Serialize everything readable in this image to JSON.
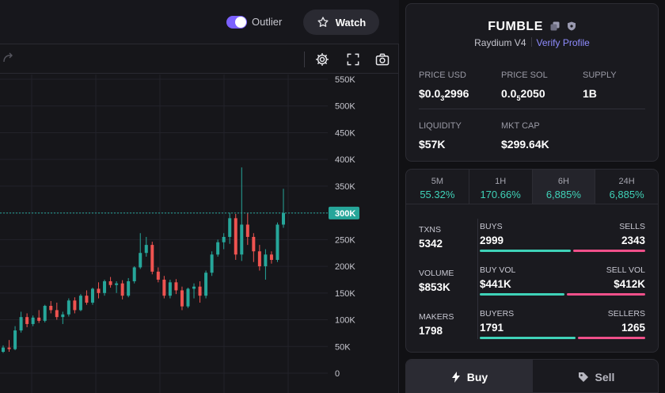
{
  "header": {
    "outlier_label": "Outlier",
    "outlier_enabled": true,
    "watch_label": "Watch"
  },
  "toolbar": {
    "icons": [
      "redo-icon",
      "settings-icon",
      "fullscreen-icon",
      "camera-icon"
    ]
  },
  "chart_data": {
    "type": "candlestick",
    "y_tick_labels": [
      "550K",
      "500K",
      "450K",
      "400K",
      "350K",
      "300K",
      "250K",
      "200K",
      "150K",
      "100K",
      "50K",
      "0"
    ],
    "y_ticks": [
      550000,
      500000,
      450000,
      400000,
      350000,
      300000,
      250000,
      200000,
      150000,
      100000,
      50000,
      0
    ],
    "ylim": [
      0,
      550000
    ],
    "current_price_label": "300K",
    "current_price": 299640,
    "grid": true,
    "colors": {
      "up": "#26a69a",
      "down": "#ef5350",
      "price_line": "#26a69a"
    },
    "candles": [
      {
        "o": 40000,
        "h": 52000,
        "l": 38000,
        "c": 48000
      },
      {
        "o": 48000,
        "h": 62000,
        "l": 40000,
        "c": 45000
      },
      {
        "o": 45000,
        "h": 88000,
        "l": 43000,
        "c": 80000
      },
      {
        "o": 80000,
        "h": 115000,
        "l": 76000,
        "c": 105000
      },
      {
        "o": 105000,
        "h": 112000,
        "l": 86000,
        "c": 92000
      },
      {
        "o": 92000,
        "h": 108000,
        "l": 88000,
        "c": 104000
      },
      {
        "o": 104000,
        "h": 118000,
        "l": 94000,
        "c": 98000
      },
      {
        "o": 98000,
        "h": 128000,
        "l": 95000,
        "c": 126000
      },
      {
        "o": 126000,
        "h": 135000,
        "l": 112000,
        "c": 118000
      },
      {
        "o": 118000,
        "h": 132000,
        "l": 100000,
        "c": 105000
      },
      {
        "o": 105000,
        "h": 115000,
        "l": 92000,
        "c": 110000
      },
      {
        "o": 110000,
        "h": 140000,
        "l": 106000,
        "c": 136000
      },
      {
        "o": 136000,
        "h": 142000,
        "l": 112000,
        "c": 118000
      },
      {
        "o": 118000,
        "h": 148000,
        "l": 116000,
        "c": 145000
      },
      {
        "o": 145000,
        "h": 155000,
        "l": 128000,
        "c": 132000
      },
      {
        "o": 132000,
        "h": 160000,
        "l": 128000,
        "c": 158000
      },
      {
        "o": 158000,
        "h": 170000,
        "l": 140000,
        "c": 150000
      },
      {
        "o": 150000,
        "h": 175000,
        "l": 145000,
        "c": 172000
      },
      {
        "o": 172000,
        "h": 180000,
        "l": 160000,
        "c": 165000
      },
      {
        "o": 165000,
        "h": 172000,
        "l": 150000,
        "c": 168000
      },
      {
        "o": 168000,
        "h": 174000,
        "l": 138000,
        "c": 145000
      },
      {
        "o": 145000,
        "h": 178000,
        "l": 142000,
        "c": 172000
      },
      {
        "o": 172000,
        "h": 200000,
        "l": 168000,
        "c": 198000
      },
      {
        "o": 198000,
        "h": 262000,
        "l": 195000,
        "c": 225000
      },
      {
        "o": 225000,
        "h": 255000,
        "l": 218000,
        "c": 240000
      },
      {
        "o": 240000,
        "h": 246000,
        "l": 185000,
        "c": 190000
      },
      {
        "o": 190000,
        "h": 198000,
        "l": 170000,
        "c": 175000
      },
      {
        "o": 175000,
        "h": 182000,
        "l": 140000,
        "c": 145000
      },
      {
        "o": 145000,
        "h": 175000,
        "l": 140000,
        "c": 170000
      },
      {
        "o": 170000,
        "h": 176000,
        "l": 148000,
        "c": 155000
      },
      {
        "o": 155000,
        "h": 162000,
        "l": 118000,
        "c": 125000
      },
      {
        "o": 125000,
        "h": 160000,
        "l": 122000,
        "c": 158000
      },
      {
        "o": 158000,
        "h": 168000,
        "l": 140000,
        "c": 162000
      },
      {
        "o": 162000,
        "h": 172000,
        "l": 132000,
        "c": 145000
      },
      {
        "o": 145000,
        "h": 192000,
        "l": 140000,
        "c": 188000
      },
      {
        "o": 188000,
        "h": 228000,
        "l": 182000,
        "c": 222000
      },
      {
        "o": 222000,
        "h": 250000,
        "l": 218000,
        "c": 245000
      },
      {
        "o": 245000,
        "h": 262000,
        "l": 232000,
        "c": 255000
      },
      {
        "o": 255000,
        "h": 300000,
        "l": 242000,
        "c": 290000
      },
      {
        "o": 290000,
        "h": 298000,
        "l": 212000,
        "c": 222000
      },
      {
        "o": 222000,
        "h": 385000,
        "l": 210000,
        "c": 278000
      },
      {
        "o": 278000,
        "h": 300000,
        "l": 240000,
        "c": 255000
      },
      {
        "o": 255000,
        "h": 262000,
        "l": 208000,
        "c": 228000
      },
      {
        "o": 228000,
        "h": 240000,
        "l": 192000,
        "c": 200000
      },
      {
        "o": 200000,
        "h": 232000,
        "l": 175000,
        "c": 222000
      },
      {
        "o": 222000,
        "h": 228000,
        "l": 205000,
        "c": 212000
      },
      {
        "o": 212000,
        "h": 282000,
        "l": 208000,
        "c": 278000
      },
      {
        "o": 278000,
        "h": 345000,
        "l": 272000,
        "c": 299640
      }
    ]
  },
  "token": {
    "name": "FUMBLE",
    "dex": "Raydium V4",
    "verify_label": "Verify Profile",
    "stats": [
      {
        "label": "PRICE USD",
        "value_main": "$0.0",
        "value_sub": "3",
        "value_rest": "2996"
      },
      {
        "label": "PRICE SOL",
        "value_main": "0.0",
        "value_sub": "5",
        "value_rest": "2050"
      },
      {
        "label": "SUPPLY",
        "value_main": "1B",
        "value_sub": "",
        "value_rest": ""
      },
      {
        "label": "LIQUIDITY",
        "value_main": "$57K",
        "value_sub": "",
        "value_rest": ""
      },
      {
        "label": "MKT CAP",
        "value_main": "$299.64K",
        "value_sub": "",
        "value_rest": ""
      }
    ]
  },
  "timeframes": [
    {
      "label": "5M",
      "change": "55.32%",
      "active": false
    },
    {
      "label": "1H",
      "change": "170.66%",
      "active": false
    },
    {
      "label": "6H",
      "change": "6,885%",
      "active": true
    },
    {
      "label": "24H",
      "change": "6,885%",
      "active": false
    }
  ],
  "txns": {
    "txns_label": "TXNS",
    "txns_value": "5342",
    "volume_label": "VOLUME",
    "volume_value": "$853K",
    "makers_label": "MAKERS",
    "makers_value": "1798",
    "buys_label": "BUYS",
    "buys_value": "2999",
    "sells_label": "SELLS",
    "sells_value": "2343",
    "buy_vol_label": "BUY VOL",
    "buy_vol_value": "$441K",
    "sell_vol_label": "SELL VOL",
    "sell_vol_value": "$412K",
    "buyers_label": "BUYERS",
    "buyers_value": "1791",
    "sellers_label": "SELLERS",
    "sellers_value": "1265"
  },
  "actions": {
    "buy_label": "Buy",
    "sell_label": "Sell"
  }
}
